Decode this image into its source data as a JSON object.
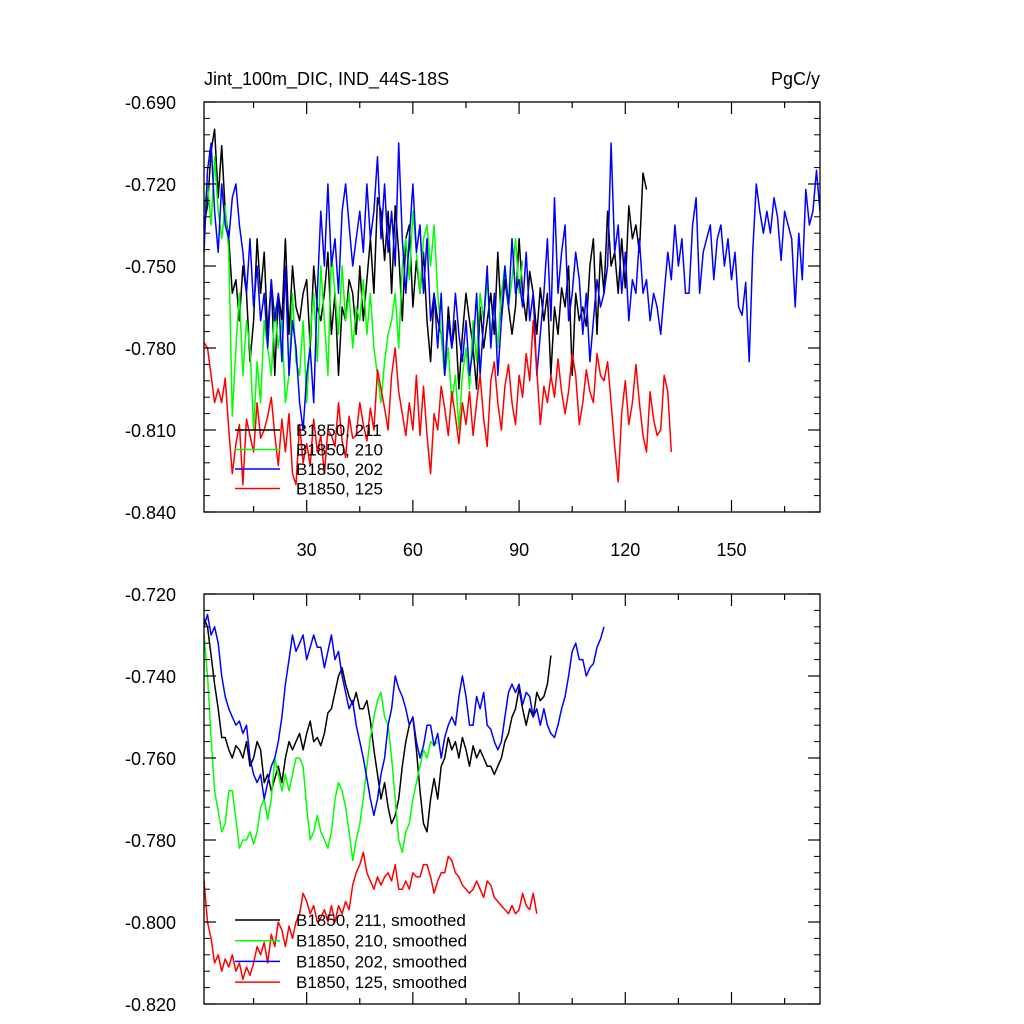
{
  "chart_data": [
    {
      "type": "line",
      "title": "Jint_100m_DIC, IND_44S-18S",
      "units": "PgC/y",
      "xlim": [
        1,
        175
      ],
      "ylim": [
        -0.84,
        -0.69
      ],
      "yticks": [
        "-0.690",
        "-0.720",
        "-0.750",
        "-0.780",
        "-0.810",
        "-0.840"
      ],
      "xticks": [
        "30",
        "60",
        "90",
        "120",
        "150"
      ],
      "legend_position": "bottom-left",
      "series": [
        {
          "name": "B1850, 211",
          "color": "#000000",
          "values": [
            -0.735,
            -0.728,
            -0.708,
            -0.7,
            -0.725,
            -0.706,
            -0.73,
            -0.74,
            -0.76,
            -0.755,
            -0.77,
            -0.75,
            -0.76,
            -0.785,
            -0.77,
            -0.74,
            -0.76,
            -0.745,
            -0.775,
            -0.755,
            -0.79,
            -0.76,
            -0.77,
            -0.74,
            -0.775,
            -0.75,
            -0.765,
            -0.77,
            -0.76,
            -0.755,
            -0.78,
            -0.75,
            -0.765,
            -0.77,
            -0.76,
            -0.745,
            -0.775,
            -0.76,
            -0.79,
            -0.765,
            -0.77,
            -0.755,
            -0.76,
            -0.775,
            -0.75,
            -0.77,
            -0.755,
            -0.74,
            -0.76,
            -0.725,
            -0.73,
            -0.748,
            -0.73,
            -0.76,
            -0.728,
            -0.745,
            -0.77,
            -0.74,
            -0.735,
            -0.765,
            -0.748,
            -0.76,
            -0.745,
            -0.77,
            -0.785,
            -0.76,
            -0.77,
            -0.775,
            -0.79,
            -0.765,
            -0.78,
            -0.77,
            -0.795,
            -0.775,
            -0.76,
            -0.77,
            -0.78,
            -0.795,
            -0.765,
            -0.78,
            -0.77,
            -0.76,
            -0.775,
            -0.745,
            -0.77,
            -0.755,
            -0.765,
            -0.775,
            -0.765,
            -0.74,
            -0.76,
            -0.77,
            -0.752,
            -0.76,
            -0.775,
            -0.758,
            -0.77,
            -0.76,
            -0.79,
            -0.765,
            -0.775,
            -0.758,
            -0.765,
            -0.75,
            -0.79,
            -0.76,
            -0.77,
            -0.765,
            -0.772,
            -0.75,
            -0.74,
            -0.775,
            -0.745,
            -0.76,
            -0.73,
            -0.75,
            -0.745,
            -0.76,
            -0.74,
            -0.758,
            -0.728,
            -0.74,
            -0.735,
            -0.745,
            -0.716,
            -0.722
          ]
        },
        {
          "name": "B1850, 210",
          "color": "#00ff00",
          "values": [
            -0.73,
            -0.72,
            -0.735,
            -0.71,
            -0.73,
            -0.74,
            -0.728,
            -0.745,
            -0.805,
            -0.78,
            -0.76,
            -0.79,
            -0.77,
            -0.78,
            -0.81,
            -0.785,
            -0.8,
            -0.77,
            -0.78,
            -0.79,
            -0.765,
            -0.78,
            -0.77,
            -0.8,
            -0.79,
            -0.76,
            -0.785,
            -0.79,
            -0.77,
            -0.8,
            -0.775,
            -0.76,
            -0.785,
            -0.75,
            -0.77,
            -0.79,
            -0.745,
            -0.76,
            -0.775,
            -0.75,
            -0.77,
            -0.76,
            -0.78,
            -0.765,
            -0.77,
            -0.755,
            -0.775,
            -0.76,
            -0.78,
            -0.79,
            -0.8,
            -0.785,
            -0.775,
            -0.77,
            -0.76,
            -0.78,
            -0.75,
            -0.74,
            -0.755,
            -0.73,
            -0.745,
            -0.76,
            -0.74,
            -0.735,
            -0.75,
            -0.735,
            -0.76,
            -0.775,
            -0.79,
            -0.78,
            -0.8,
            -0.79,
            -0.81,
            -0.79,
            -0.78,
            -0.795,
            -0.77,
            -0.785,
            -0.76,
            -0.77,
            -0.755,
            -0.775,
            -0.765,
            -0.78,
            -0.76,
            -0.75,
            -0.765,
            -0.755,
            -0.74,
            -0.76,
            -0.748
          ]
        },
        {
          "name": "B1850, 202",
          "color": "#0000ff",
          "values": [
            -0.745,
            -0.715,
            -0.705,
            -0.73,
            -0.745,
            -0.72,
            -0.735,
            -0.74,
            -0.725,
            -0.72,
            -0.735,
            -0.745,
            -0.76,
            -0.74,
            -0.765,
            -0.75,
            -0.77,
            -0.76,
            -0.78,
            -0.755,
            -0.77,
            -0.76,
            -0.785,
            -0.75,
            -0.79,
            -0.77,
            -0.78,
            -0.8,
            -0.81,
            -0.79,
            -0.78,
            -0.8,
            -0.76,
            -0.73,
            -0.75,
            -0.72,
            -0.75,
            -0.74,
            -0.76,
            -0.73,
            -0.72,
            -0.735,
            -0.75,
            -0.74,
            -0.73,
            -0.745,
            -0.72,
            -0.74,
            -0.73,
            -0.71,
            -0.74,
            -0.72,
            -0.745,
            -0.73,
            -0.75,
            -0.705,
            -0.74,
            -0.76,
            -0.74,
            -0.72,
            -0.745,
            -0.735,
            -0.76,
            -0.74,
            -0.77,
            -0.76,
            -0.78,
            -0.76,
            -0.79,
            -0.77,
            -0.78,
            -0.76,
            -0.775,
            -0.785,
            -0.77,
            -0.79,
            -0.78,
            -0.76,
            -0.79,
            -0.77,
            -0.75,
            -0.78,
            -0.76,
            -0.79,
            -0.77,
            -0.75,
            -0.765,
            -0.74,
            -0.76,
            -0.755,
            -0.765,
            -0.745,
            -0.77,
            -0.76,
            -0.79,
            -0.775,
            -0.76,
            -0.74,
            -0.77,
            -0.725,
            -0.76,
            -0.745,
            -0.735,
            -0.77,
            -0.76,
            -0.745,
            -0.755,
            -0.775,
            -0.76,
            -0.785,
            -0.77,
            -0.755,
            -0.765,
            -0.76,
            -0.75,
            -0.705,
            -0.745,
            -0.735,
            -0.76,
            -0.745,
            -0.77,
            -0.755,
            -0.76,
            -0.74,
            -0.76,
            -0.755,
            -0.77,
            -0.76,
            -0.765,
            -0.775,
            -0.76,
            -0.745,
            -0.755,
            -0.735,
            -0.75,
            -0.74,
            -0.76,
            -0.76,
            -0.735,
            -0.725,
            -0.76,
            -0.745,
            -0.74,
            -0.735,
            -0.755,
            -0.74,
            -0.735,
            -0.75,
            -0.74,
            -0.755,
            -0.745,
            -0.765,
            -0.768,
            -0.756,
            -0.785,
            -0.745,
            -0.72,
            -0.73,
            -0.738,
            -0.73,
            -0.738,
            -0.725,
            -0.732,
            -0.748,
            -0.73,
            -0.735,
            -0.74,
            -0.765,
            -0.738,
            -0.755,
            -0.722,
            -0.735,
            -0.73,
            -0.715,
            -0.73
          ]
        },
        {
          "name": "B1850, 125",
          "color": "#ff0000",
          "values": [
            -0.778,
            -0.78,
            -0.79,
            -0.8,
            -0.795,
            -0.8,
            -0.791,
            -0.81,
            -0.826,
            -0.815,
            -0.808,
            -0.83,
            -0.806,
            -0.812,
            -0.818,
            -0.8,
            -0.813,
            -0.81,
            -0.805,
            -0.798,
            -0.812,
            -0.823,
            -0.806,
            -0.818,
            -0.804,
            -0.826,
            -0.83,
            -0.808,
            -0.822,
            -0.815,
            -0.823,
            -0.806,
            -0.818,
            -0.812,
            -0.826,
            -0.81,
            -0.812,
            -0.816,
            -0.8,
            -0.814,
            -0.82,
            -0.805,
            -0.813,
            -0.812,
            -0.8,
            -0.808,
            -0.814,
            -0.802,
            -0.81,
            -0.788,
            -0.795,
            -0.802,
            -0.81,
            -0.79,
            -0.78,
            -0.796,
            -0.804,
            -0.812,
            -0.8,
            -0.81,
            -0.79,
            -0.812,
            -0.794,
            -0.812,
            -0.826,
            -0.804,
            -0.81,
            -0.794,
            -0.802,
            -0.812,
            -0.796,
            -0.805,
            -0.815,
            -0.8,
            -0.808,
            -0.796,
            -0.812,
            -0.8,
            -0.79,
            -0.806,
            -0.816,
            -0.792,
            -0.785,
            -0.8,
            -0.81,
            -0.794,
            -0.786,
            -0.8,
            -0.808,
            -0.79,
            -0.798,
            -0.782,
            -0.792,
            -0.77,
            -0.788,
            -0.808,
            -0.794,
            -0.8,
            -0.79,
            -0.798,
            -0.784,
            -0.796,
            -0.804,
            -0.796,
            -0.782,
            -0.79,
            -0.808,
            -0.8,
            -0.788,
            -0.796,
            -0.8,
            -0.782,
            -0.79,
            -0.792,
            -0.785,
            -0.8,
            -0.816,
            -0.829,
            -0.804,
            -0.792,
            -0.808,
            -0.8,
            -0.786,
            -0.8,
            -0.812,
            -0.818,
            -0.796,
            -0.806,
            -0.812,
            -0.81,
            -0.79,
            -0.796,
            -0.818
          ]
        }
      ]
    },
    {
      "type": "line",
      "xlim": [
        1,
        175
      ],
      "ylim": [
        -0.82,
        -0.72
      ],
      "yticks": [
        "-0.720",
        "-0.740",
        "-0.760",
        "-0.780",
        "-0.800",
        "-0.820"
      ],
      "legend_position": "bottom-left",
      "series": [
        {
          "name": "B1850, 211, smoothed",
          "color": "#000000",
          "values": [
            -0.726,
            -0.728,
            -0.735,
            -0.742,
            -0.748,
            -0.755,
            -0.755,
            -0.758,
            -0.76,
            -0.757,
            -0.758,
            -0.76,
            -0.756,
            -0.762,
            -0.76,
            -0.756,
            -0.758,
            -0.766,
            -0.764,
            -0.768,
            -0.765,
            -0.762,
            -0.766,
            -0.76,
            -0.756,
            -0.758,
            -0.756,
            -0.754,
            -0.758,
            -0.754,
            -0.751,
            -0.756,
            -0.755,
            -0.757,
            -0.754,
            -0.749,
            -0.748,
            -0.744,
            -0.74,
            -0.738,
            -0.742,
            -0.745,
            -0.747,
            -0.744,
            -0.748,
            -0.748,
            -0.746,
            -0.751,
            -0.758,
            -0.764,
            -0.77,
            -0.766,
            -0.772,
            -0.776,
            -0.774,
            -0.77,
            -0.762,
            -0.756,
            -0.752,
            -0.75,
            -0.758,
            -0.768,
            -0.776,
            -0.778,
            -0.77,
            -0.765,
            -0.77,
            -0.762,
            -0.76,
            -0.755,
            -0.758,
            -0.756,
            -0.76,
            -0.755,
            -0.758,
            -0.762,
            -0.757,
            -0.76,
            -0.758,
            -0.76,
            -0.762,
            -0.762,
            -0.764,
            -0.762,
            -0.76,
            -0.756,
            -0.754,
            -0.75,
            -0.748,
            -0.743,
            -0.748,
            -0.752,
            -0.748,
            -0.75,
            -0.744,
            -0.746,
            -0.745,
            -0.742,
            -0.735
          ]
        },
        {
          "name": "B1850, 210, smoothed",
          "color": "#00ff00",
          "values": [
            -0.73,
            -0.74,
            -0.755,
            -0.768,
            -0.773,
            -0.778,
            -0.776,
            -0.768,
            -0.768,
            -0.775,
            -0.782,
            -0.78,
            -0.78,
            -0.778,
            -0.781,
            -0.778,
            -0.772,
            -0.77,
            -0.775,
            -0.77,
            -0.76,
            -0.764,
            -0.768,
            -0.764,
            -0.768,
            -0.764,
            -0.76,
            -0.76,
            -0.762,
            -0.772,
            -0.78,
            -0.778,
            -0.774,
            -0.778,
            -0.78,
            -0.782,
            -0.778,
            -0.77,
            -0.766,
            -0.768,
            -0.772,
            -0.778,
            -0.785,
            -0.78,
            -0.776,
            -0.77,
            -0.762,
            -0.755,
            -0.75,
            -0.746,
            -0.744,
            -0.75,
            -0.752,
            -0.76,
            -0.77,
            -0.78,
            -0.783,
            -0.778,
            -0.776,
            -0.77,
            -0.766,
            -0.762,
            -0.758,
            -0.76,
            -0.756,
            -0.757,
            -0.756
          ]
        },
        {
          "name": "B1850, 202, smoothed",
          "color": "#0000ff",
          "values": [
            -0.728,
            -0.725,
            -0.73,
            -0.728,
            -0.732,
            -0.74,
            -0.745,
            -0.748,
            -0.75,
            -0.752,
            -0.751,
            -0.754,
            -0.752,
            -0.76,
            -0.764,
            -0.766,
            -0.764,
            -0.77,
            -0.766,
            -0.762,
            -0.76,
            -0.756,
            -0.75,
            -0.742,
            -0.736,
            -0.73,
            -0.734,
            -0.732,
            -0.73,
            -0.736,
            -0.733,
            -0.73,
            -0.733,
            -0.733,
            -0.738,
            -0.734,
            -0.73,
            -0.736,
            -0.734,
            -0.74,
            -0.744,
            -0.748,
            -0.746,
            -0.752,
            -0.756,
            -0.76,
            -0.765,
            -0.77,
            -0.774,
            -0.77,
            -0.764,
            -0.76,
            -0.752,
            -0.748,
            -0.74,
            -0.743,
            -0.745,
            -0.748,
            -0.752,
            -0.75,
            -0.756,
            -0.76,
            -0.757,
            -0.752,
            -0.752,
            -0.757,
            -0.754,
            -0.76,
            -0.755,
            -0.752,
            -0.75,
            -0.752,
            -0.745,
            -0.74,
            -0.745,
            -0.752,
            -0.752,
            -0.745,
            -0.748,
            -0.744,
            -0.752,
            -0.753,
            -0.756,
            -0.758,
            -0.756,
            -0.75,
            -0.744,
            -0.742,
            -0.744,
            -0.742,
            -0.747,
            -0.744,
            -0.745,
            -0.75,
            -0.748,
            -0.752,
            -0.748,
            -0.752,
            -0.754,
            -0.755,
            -0.752,
            -0.748,
            -0.745,
            -0.74,
            -0.734,
            -0.732,
            -0.736,
            -0.736,
            -0.74,
            -0.738,
            -0.737,
            -0.733,
            -0.731,
            -0.728
          ]
        },
        {
          "name": "B1850, 125, smoothed",
          "color": "#ff0000",
          "values": [
            -0.79,
            -0.8,
            -0.804,
            -0.81,
            -0.808,
            -0.812,
            -0.809,
            -0.811,
            -0.808,
            -0.812,
            -0.81,
            -0.814,
            -0.811,
            -0.813,
            -0.81,
            -0.806,
            -0.808,
            -0.805,
            -0.81,
            -0.803,
            -0.806,
            -0.8,
            -0.802,
            -0.806,
            -0.801,
            -0.804,
            -0.8,
            -0.798,
            -0.793,
            -0.795,
            -0.798,
            -0.796,
            -0.8,
            -0.799,
            -0.797,
            -0.8,
            -0.796,
            -0.8,
            -0.796,
            -0.798,
            -0.795,
            -0.797,
            -0.791,
            -0.788,
            -0.786,
            -0.783,
            -0.788,
            -0.79,
            -0.792,
            -0.789,
            -0.791,
            -0.789,
            -0.788,
            -0.79,
            -0.786,
            -0.792,
            -0.792,
            -0.79,
            -0.792,
            -0.788,
            -0.789,
            -0.789,
            -0.786,
            -0.786,
            -0.789,
            -0.793,
            -0.79,
            -0.788,
            -0.788,
            -0.784,
            -0.785,
            -0.788,
            -0.789,
            -0.791,
            -0.792,
            -0.793,
            -0.792,
            -0.79,
            -0.792,
            -0.794,
            -0.79,
            -0.791,
            -0.794,
            -0.795,
            -0.796,
            -0.797,
            -0.798,
            -0.796,
            -0.798,
            -0.797,
            -0.793,
            -0.796,
            -0.797,
            -0.793,
            -0.798
          ]
        }
      ]
    }
  ]
}
